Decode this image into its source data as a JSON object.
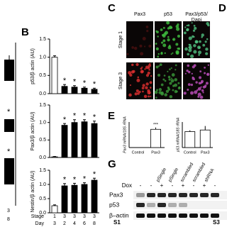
{
  "panel_a": {
    "stars": [
      "*",
      "*"
    ],
    "stage": "3",
    "day": "8"
  },
  "panel_b": {
    "label": "B",
    "stage_label": "Stage",
    "day_label": "Day",
    "stages": [
      1,
      3,
      3,
      3,
      3
    ],
    "days": [
      3,
      2,
      4,
      6,
      8
    ],
    "charts": [
      {
        "ylabel": "p53/β actin (AU)",
        "values": [
          1.0,
          0.2,
          0.18,
          0.15,
          0.12
        ],
        "errors": [
          0.04,
          0.05,
          0.04,
          0.03,
          0.03
        ],
        "stars": [
          null,
          "*",
          "*",
          "*",
          "*"
        ],
        "ylim": [
          0,
          1.5
        ],
        "yticks": [
          {
            "value": 0,
            "label": "0.0"
          },
          {
            "value": 0.5,
            "label": "0.5"
          },
          {
            "value": 1,
            "label": "1.0"
          },
          {
            "value": 1.5,
            "label": "1.5"
          }
        ]
      },
      {
        "ylabel": "Pax3/β actin (AU)",
        "values": [
          0.02,
          0.92,
          1.0,
          1.02,
          0.97
        ],
        "errors": [
          0.01,
          0.05,
          0.08,
          0.06,
          0.07
        ],
        "stars": [
          null,
          "*",
          "*",
          "*",
          "*"
        ],
        "ylim": [
          0,
          1.5
        ],
        "yticks": [
          {
            "value": 0,
            "label": "0.0"
          },
          {
            "value": 0.5,
            "label": "0.5"
          },
          {
            "value": 1,
            "label": "1.0"
          },
          {
            "value": 1.5,
            "label": "1.5"
          }
        ]
      },
      {
        "ylabel": "Nestin/β actin (AU)",
        "values": [
          0.25,
          0.95,
          0.97,
          1.0,
          1.15
        ],
        "errors": [
          0.03,
          0.08,
          0.07,
          0.06,
          0.07
        ],
        "stars": [
          null,
          "*",
          "*",
          "*",
          "*"
        ],
        "ylim": [
          0,
          1.5
        ],
        "yticks": [
          {
            "value": 0,
            "label": "0.0"
          },
          {
            "value": 0.5,
            "label": "0.5"
          },
          {
            "value": 1,
            "label": "1.0"
          },
          {
            "value": 1.5,
            "label": "1.5"
          }
        ]
      }
    ]
  },
  "panel_c": {
    "label": "C",
    "columns": [
      "Pax3",
      "p53",
      "Pax3/p53/\nDapi"
    ],
    "rows": [
      "Stage 1",
      "Stage 3"
    ]
  },
  "panel_d": {
    "label": "D"
  },
  "panel_e": {
    "label": "E",
    "categories": [
      "Control",
      "Pax3"
    ],
    "charts": [
      {
        "ylabel": "Pax3 mRNA/18S rRNA",
        "values": [
          0.0,
          1.0
        ],
        "errors": [
          0.0,
          0.1
        ],
        "stars": [
          null,
          "***"
        ],
        "ylim": [
          0,
          1.4
        ]
      },
      {
        "ylabel": "p53 mRNA/18S rRNA",
        "values": [
          1.0,
          1.1
        ],
        "errors": [
          0.08,
          0.25
        ],
        "stars": [
          null,
          null
        ],
        "ylim": [
          0,
          1.6
        ]
      }
    ]
  },
  "panel_g": {
    "label": "G",
    "dox_label": "Dox",
    "dox": [
      "-",
      "-",
      "+",
      "-",
      "+",
      "-",
      "+",
      "-"
    ],
    "columns": [
      "pSingle",
      "pSingle",
      "scrambled",
      "scrambled",
      "shRNA"
    ],
    "rows": [
      "Pax3",
      "p53",
      "β–actin"
    ],
    "footer": [
      "S1",
      "S3"
    ]
  }
}
